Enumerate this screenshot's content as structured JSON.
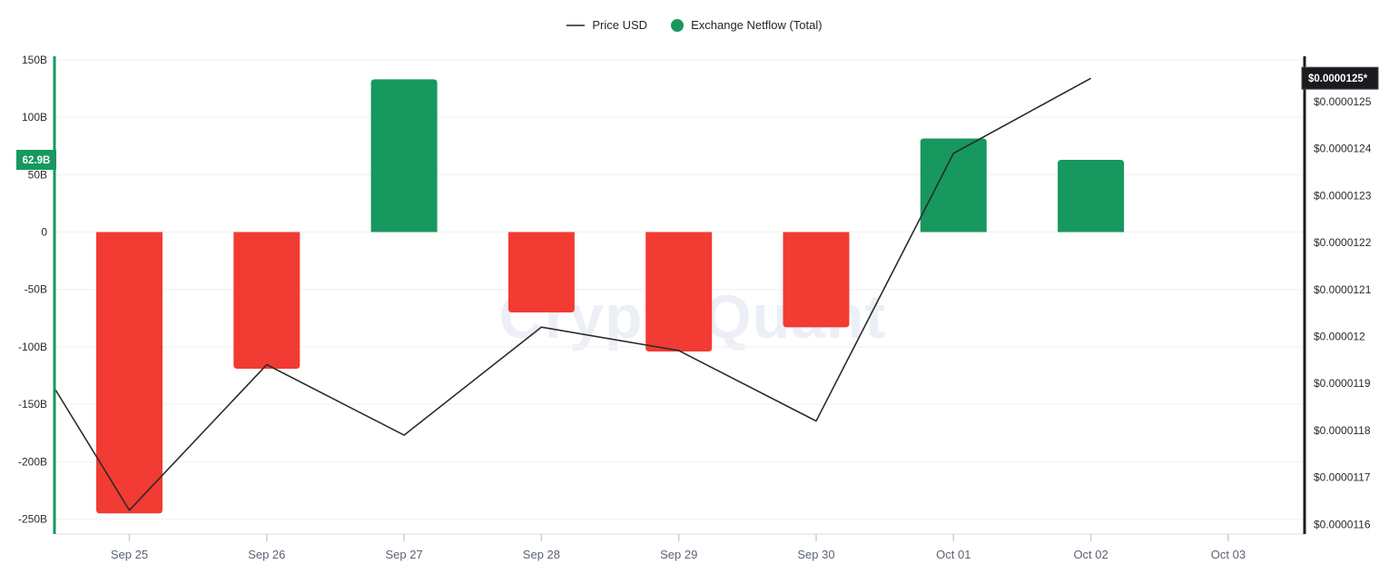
{
  "legend": {
    "items": [
      {
        "label": "Price USD",
        "swatch": "line",
        "color": "#595959"
      },
      {
        "label": "Exchange Netflow (Total)",
        "swatch": "dot",
        "color": "#16985f"
      }
    ]
  },
  "watermark": {
    "text": "CryptoQuant"
  },
  "colors": {
    "positive_bar": "#16985f",
    "negative_bar": "#f23b33",
    "price_line": "#2b2b2b",
    "grid": "#f4f4f4",
    "left_axis_line": "#16985f",
    "right_axis_line": "#1b1b1f",
    "left_badge_bg": "#16985f",
    "right_badge_bg": "#1b1b1f",
    "right_badge_border": "#44444a",
    "badge_text": "#ffffff",
    "left_tick_text": "#2b2b2b",
    "right_tick_text": "#2b2b2b",
    "x_tick_text": "#5a6472",
    "x_tick_mark": "#c9ced6",
    "bottom_axis_line": "#e8e8e8",
    "watermark_text": "#edeff6"
  },
  "chart_data": {
    "type": "combo",
    "grid": "horizontal",
    "legend_position": "top-center",
    "categories": [
      "Sep 25",
      "Sep 26",
      "Sep 27",
      "Sep 28",
      "Sep 29",
      "Sep 30",
      "Oct 01",
      "Oct 02",
      "Oct 03"
    ],
    "series": [
      {
        "name": "Exchange Netflow (Total)",
        "type": "bar",
        "axis": "left",
        "unit": "B",
        "values": [
          -245,
          -119,
          133,
          -70,
          -104,
          -83,
          81.5,
          62.9,
          null
        ]
      },
      {
        "name": "Price USD",
        "type": "line",
        "axis": "right",
        "edge_start_value": 1.189e-05,
        "values": [
          1.163e-05,
          1.194e-05,
          1.179e-05,
          1.202e-05,
          1.197e-05,
          1.182e-05,
          1.239e-05,
          1.255e-05,
          null
        ]
      }
    ],
    "left_axis": {
      "ticks": [
        "150B",
        "100B",
        "50B",
        "0",
        "-50B",
        "-100B",
        "-150B",
        "-200B",
        "-250B"
      ],
      "tick_values": [
        150,
        100,
        50,
        0,
        -50,
        -100,
        -150,
        -200,
        -250
      ],
      "ylim": [
        -250,
        150
      ],
      "current_badge": "62.9B",
      "current_value": 62.9
    },
    "right_axis": {
      "ticks": [
        "$0.0000125",
        "$0.0000124",
        "$0.0000123",
        "$0.0000122",
        "$0.0000121",
        "$0.000012",
        "$0.0000119",
        "$0.0000118",
        "$0.0000117",
        "$0.0000116"
      ],
      "tick_values": [
        1.25e-05,
        1.24e-05,
        1.23e-05,
        1.22e-05,
        1.21e-05,
        1.2e-05,
        1.19e-05,
        1.18e-05,
        1.17e-05,
        1.16e-05
      ],
      "ylim": [
        1.16e-05,
        1.25e-05
      ],
      "current_badge": "$0.0000125*",
      "current_value": 1.255e-05
    }
  }
}
